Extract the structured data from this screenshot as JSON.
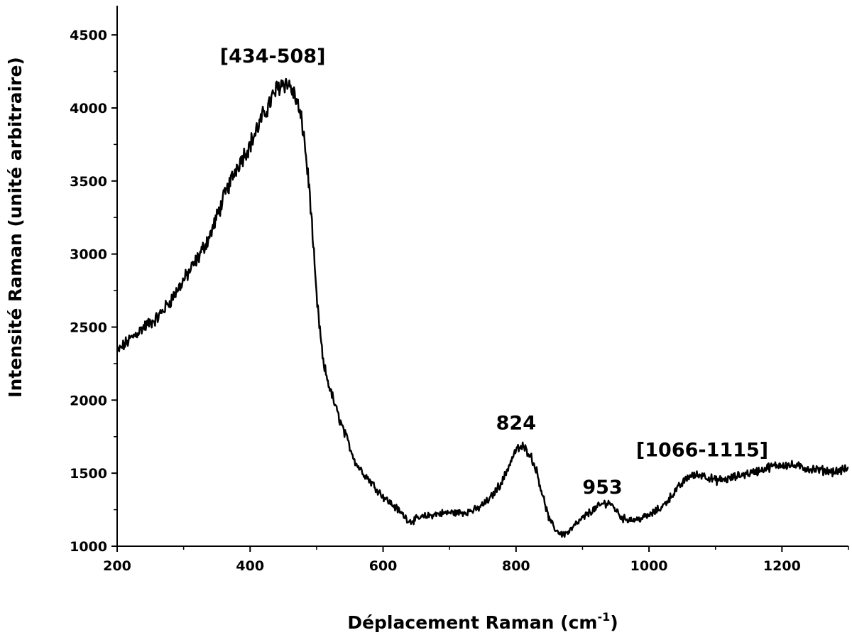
{
  "chart_data": {
    "type": "line",
    "title": "",
    "xlabel": "Déplacement Raman (cm",
    "xlabel_superscript": "-1",
    "xlabel_suffix": ")",
    "ylabel": "Intensité Raman (unité arbitraire)",
    "xlim": [
      200,
      1300
    ],
    "ylim": [
      1000,
      4700
    ],
    "xticks": [
      200,
      400,
      600,
      800,
      1000,
      1200
    ],
    "yticks": [
      1000,
      1500,
      2000,
      2500,
      3000,
      3500,
      4000,
      4500
    ],
    "grid": false,
    "series": [
      {
        "color": "#000000",
        "x": [
          200,
          220,
          240,
          260,
          280,
          300,
          320,
          340,
          360,
          380,
          400,
          420,
          440,
          450,
          460,
          470,
          480,
          490,
          500,
          510,
          520,
          530,
          540,
          550,
          560,
          580,
          600,
          620,
          640,
          660,
          680,
          700,
          720,
          740,
          760,
          780,
          790,
          800,
          810,
          820,
          830,
          840,
          850,
          860,
          870,
          880,
          890,
          900,
          910,
          920,
          930,
          940,
          950,
          960,
          980,
          1000,
          1020,
          1040,
          1060,
          1080,
          1100,
          1120,
          1140,
          1160,
          1180,
          1200,
          1220,
          1240,
          1260,
          1280,
          1300
        ],
        "y": [
          2330,
          2420,
          2500,
          2560,
          2680,
          2820,
          2960,
          3130,
          3380,
          3600,
          3750,
          3950,
          4130,
          4180,
          4150,
          4050,
          3850,
          3400,
          2700,
          2250,
          2080,
          1930,
          1800,
          1680,
          1560,
          1450,
          1340,
          1260,
          1170,
          1200,
          1220,
          1230,
          1230,
          1250,
          1320,
          1450,
          1560,
          1660,
          1680,
          1640,
          1530,
          1350,
          1180,
          1110,
          1080,
          1100,
          1150,
          1190,
          1230,
          1260,
          1290,
          1300,
          1250,
          1190,
          1180,
          1210,
          1270,
          1380,
          1480,
          1490,
          1450,
          1460,
          1490,
          1510,
          1540,
          1560,
          1550,
          1530,
          1520,
          1510,
          1530
        ]
      }
    ],
    "annotations": [
      {
        "label": "[434-508]",
        "x": 434,
        "y": 4310
      },
      {
        "label": "824",
        "x": 800,
        "y": 1800
      },
      {
        "label": "953",
        "x": 930,
        "y": 1360
      },
      {
        "label": "[1066-1115]",
        "x": 1080,
        "y": 1615
      }
    ]
  }
}
